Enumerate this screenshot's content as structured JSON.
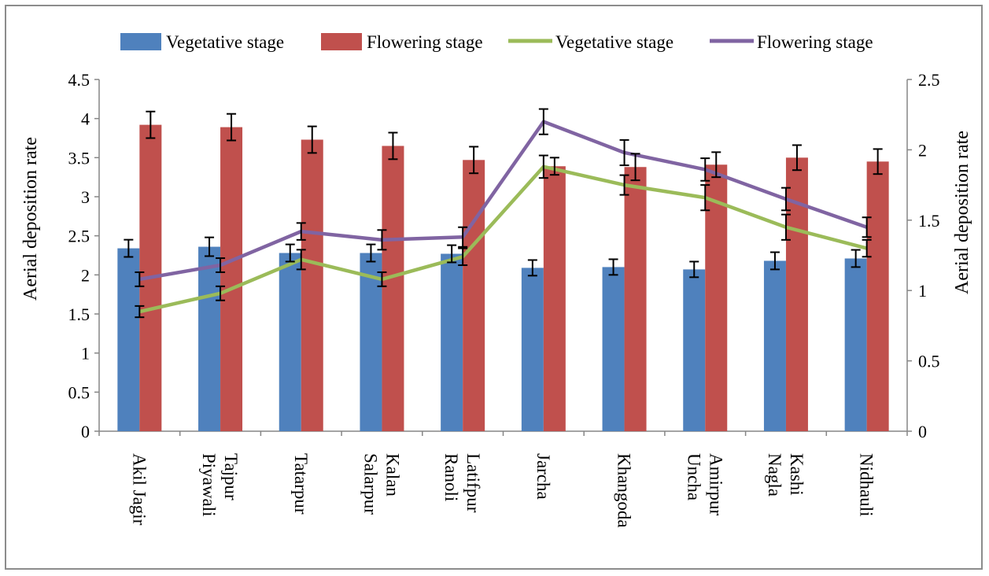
{
  "chart_data": {
    "type": "bar",
    "categories": [
      "Akil Jagir",
      "Piyawali Tajpur",
      "Tatarpur",
      "Salarpur Kalan",
      "Ranoli Latifpur",
      "Jarcha",
      "Khangoda",
      "Uncha Amirpur",
      "Nagla Kashi",
      "Nidhauli"
    ],
    "category_lines": [
      [
        "Akil Jagir"
      ],
      [
        "Piyawali",
        "Tajpur"
      ],
      [
        "Tatarpur"
      ],
      [
        "Salarpur",
        "Kalan"
      ],
      [
        "Ranoli",
        "Latifpur"
      ],
      [
        "Jarcha"
      ],
      [
        "Khangoda"
      ],
      [
        "Uncha",
        "Amirpur"
      ],
      [
        "Nagla",
        "Kashi"
      ],
      [
        "Nidhauli"
      ]
    ],
    "ylabel": "Aerial deposition rate",
    "ylabel_right": "Aerial deposition rate",
    "ylim": [
      0,
      4.5
    ],
    "ylim_right": [
      0,
      2.5
    ],
    "yticks": [
      "0",
      "0.5",
      "1",
      "1.5",
      "2",
      "2.5",
      "3",
      "3.5",
      "4",
      "4.5"
    ],
    "yticks_right": [
      "0",
      "0.5",
      "1",
      "1.5",
      "2",
      "2.5"
    ],
    "grid": false,
    "legend_position": "top",
    "series": [
      {
        "name": "Vegetative stage",
        "kind": "bar",
        "axis": "left",
        "color": "#4f81bd",
        "values": [
          2.34,
          2.36,
          2.28,
          2.28,
          2.27,
          2.09,
          2.1,
          2.07,
          2.18,
          2.21
        ],
        "error": [
          0.11,
          0.12,
          0.11,
          0.11,
          0.11,
          0.1,
          0.1,
          0.1,
          0.11,
          0.11
        ]
      },
      {
        "name": "Flowering stage",
        "kind": "bar",
        "axis": "left",
        "color": "#c0504d",
        "values": [
          3.92,
          3.89,
          3.73,
          3.65,
          3.47,
          3.39,
          3.38,
          3.41,
          3.5,
          3.45
        ],
        "error": [
          0.17,
          0.17,
          0.17,
          0.17,
          0.17,
          0.11,
          0.17,
          0.16,
          0.16,
          0.16
        ]
      },
      {
        "name": "Vegetative stage",
        "kind": "line",
        "axis": "right",
        "color": "#9bbb59",
        "values": [
          0.85,
          0.98,
          1.22,
          1.08,
          1.24,
          1.88,
          1.75,
          1.66,
          1.45,
          1.3
        ],
        "error": [
          0.04,
          0.05,
          0.07,
          0.05,
          0.06,
          0.08,
          0.07,
          0.09,
          0.09,
          0.06
        ]
      },
      {
        "name": "Flowering stage",
        "kind": "line",
        "axis": "right",
        "color": "#8064a2",
        "values": [
          1.08,
          1.18,
          1.42,
          1.36,
          1.38,
          2.2,
          1.98,
          1.86,
          1.65,
          1.45
        ],
        "error": [
          0.05,
          0.05,
          0.06,
          0.07,
          0.07,
          0.09,
          0.09,
          0.08,
          0.08,
          0.07
        ]
      }
    ]
  }
}
